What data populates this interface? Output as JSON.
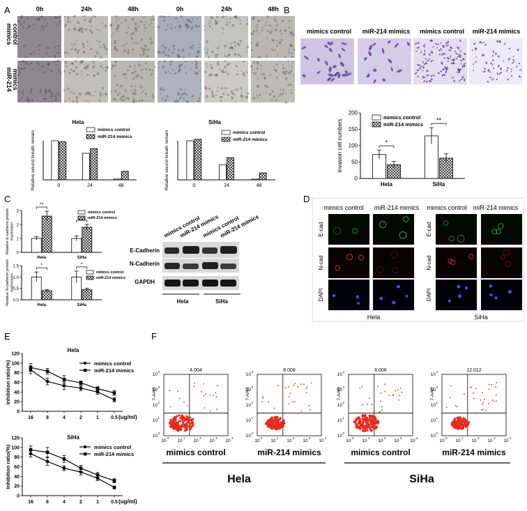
{
  "panels": {
    "A": "A",
    "B": "B",
    "C": "C",
    "D": "D",
    "E": "E",
    "F": "F"
  },
  "panelA": {
    "time_labels": [
      "0h",
      "24h",
      "48h",
      "0h",
      "24h",
      "48h"
    ],
    "row_labels": [
      [
        "mimics",
        "control"
      ],
      [
        "miR-214",
        "mimics"
      ]
    ],
    "image_tones": [
      [
        "#8f8a90",
        "#bdbcb6",
        "#b4b4ad",
        "#a9adba",
        "#c4c4be",
        "#b8b8b1"
      ],
      [
        "#8c888e",
        "#c0bfb9",
        "#b8b8b1",
        "#b0b3bd",
        "#cbcac4",
        "#bdbdb6"
      ]
    ]
  },
  "panelB": {
    "headers": [
      "mimics control",
      "miR-214 mimics",
      "mimics control",
      "miR-214 mimics"
    ],
    "image_tones": [
      "#cdc5e3",
      "#d4cde8",
      "#e2def0",
      "#ecebf5"
    ],
    "cell_color": "#5d3b93"
  },
  "panelD": {
    "headers": [
      "mimics control",
      "miR-214 mimics",
      "mimics control",
      "miR-214 mimics"
    ],
    "row_labels": [
      "E-cad",
      "N-cad",
      "DAPI"
    ],
    "group_labels": [
      "Hela",
      "SiHa"
    ]
  },
  "panelC_blot": {
    "lane_labels": [
      "mimics control",
      "miR-214 mimics",
      "mimics control",
      "miR-214 mimics"
    ],
    "proteins": [
      "E-Cadherin",
      "N-Cadherin",
      "GAPDH"
    ],
    "groups": [
      "Hela",
      "SiHa"
    ]
  },
  "panelF": {
    "values": [
      "4.004",
      "8.008",
      "6.006",
      "12.012"
    ],
    "plot_labels": [
      "mimics control",
      "miR-214 mimics",
      "mimics control",
      "miR-214 mimics"
    ],
    "group_labels": [
      "Hela",
      "SiHa"
    ],
    "y_axis": "7-AAD",
    "dot_color": "#e8281e"
  },
  "chart_data": [
    {
      "id": "wound-hela",
      "type": "bar",
      "title": "Hela",
      "ylabel": "Relative wound breath remain",
      "categories": [
        "0",
        "24",
        "48"
      ],
      "ylim": [
        0,
        100
      ],
      "series": [
        {
          "name": "mimics control",
          "values": [
            100,
            68,
            2
          ]
        },
        {
          "name": "miR-214 mimics",
          "values": [
            98,
            80,
            22
          ]
        }
      ]
    },
    {
      "id": "wound-siha",
      "type": "bar",
      "title": "SiHa",
      "ylabel": "Relative wound breath remain",
      "categories": [
        "0",
        "24",
        "48"
      ],
      "ylim": [
        0,
        100
      ],
      "series": [
        {
          "name": "mimics control",
          "values": [
            100,
            39,
            2
          ]
        },
        {
          "name": "miR-214 mimics",
          "values": [
            104,
            57,
            18
          ]
        }
      ]
    },
    {
      "id": "invasion",
      "type": "bar",
      "ylabel": "Invasion cell numbers",
      "categories": [
        "Hela",
        "SiHa"
      ],
      "ylim": [
        0,
        200
      ],
      "yticks": [
        "0",
        "50",
        "100",
        "150",
        "200"
      ],
      "series": [
        {
          "name": "mimics control",
          "values": [
            73,
            130
          ],
          "err": [
            14,
            25
          ]
        },
        {
          "name": "miR-214 mimics",
          "values": [
            42,
            62
          ],
          "err": [
            10,
            13
          ]
        }
      ],
      "sig": [
        "*",
        "**"
      ]
    },
    {
      "id": "ecad",
      "type": "bar",
      "ylabel": "Relative E-cadherin protein expression",
      "categories": [
        "Hela",
        "SiHa"
      ],
      "ylim": [
        0,
        3
      ],
      "yticks": [
        "0",
        "1",
        "2",
        "3"
      ],
      "series": [
        {
          "name": "mimics control",
          "values": [
            1.0,
            1.0
          ],
          "err": [
            0.12,
            0.18
          ]
        },
        {
          "name": "miR-214 mimics",
          "values": [
            2.6,
            1.8
          ],
          "err": [
            0.35,
            0.2
          ]
        }
      ],
      "sig": [
        "**",
        "*"
      ]
    },
    {
      "id": "ncad",
      "type": "bar",
      "ylabel": "Relative N-cadherin protein expression",
      "categories": [
        "Hela",
        "SiHa"
      ],
      "ylim": [
        0,
        1.5
      ],
      "yticks": [
        "0.0",
        "0.5",
        "1.0",
        "1.5"
      ],
      "series": [
        {
          "name": "mimics control",
          "values": [
            1.0,
            1.0
          ],
          "err": [
            0.22,
            0.26
          ]
        },
        {
          "name": "miR-214 mimics",
          "values": [
            0.4,
            0.45
          ],
          "err": [
            0.05,
            0.06
          ]
        }
      ],
      "sig": [
        "*",
        "*"
      ]
    },
    {
      "id": "inhib-hela",
      "type": "line",
      "title": "Hela",
      "ylabel": "Inhibition ratio(%)",
      "xlabel": "(ug/ml)",
      "x": [
        "16",
        "8",
        "4",
        "2",
        "1",
        "0.5"
      ],
      "ylim": [
        0,
        120
      ],
      "yticks": [
        "0",
        "20",
        "40",
        "60",
        "80",
        "100",
        "120"
      ],
      "series": [
        {
          "name": "mimics control",
          "values": [
            86,
            62,
            53,
            48,
            40,
            24
          ],
          "err": [
            8,
            7,
            8,
            5,
            5,
            4
          ]
        },
        {
          "name": "miR-214 mimics",
          "values": [
            91,
            83,
            66,
            59,
            47,
            38
          ],
          "err": [
            8,
            6,
            8,
            4,
            4,
            5
          ]
        }
      ]
    },
    {
      "id": "inhib-siha",
      "type": "line",
      "title": "SiHa",
      "ylabel": "Inhibition ratio(%)",
      "xlabel": "(ug/ml)",
      "x": [
        "16",
        "8",
        "4",
        "2",
        "1",
        "0.5"
      ],
      "ylim": [
        0,
        120
      ],
      "yticks": [
        "0",
        "20",
        "40",
        "60",
        "80",
        "100",
        "120"
      ],
      "series": [
        {
          "name": "mimics control",
          "values": [
            87,
            71,
            57,
            49,
            36,
            17
          ],
          "err": [
            7,
            8,
            5,
            6,
            5,
            3
          ]
        },
        {
          "name": "miR-214 mimics",
          "values": [
            95,
            90,
            76,
            57,
            43,
            31
          ],
          "err": [
            8,
            10,
            7,
            6,
            5,
            4
          ]
        }
      ]
    }
  ]
}
